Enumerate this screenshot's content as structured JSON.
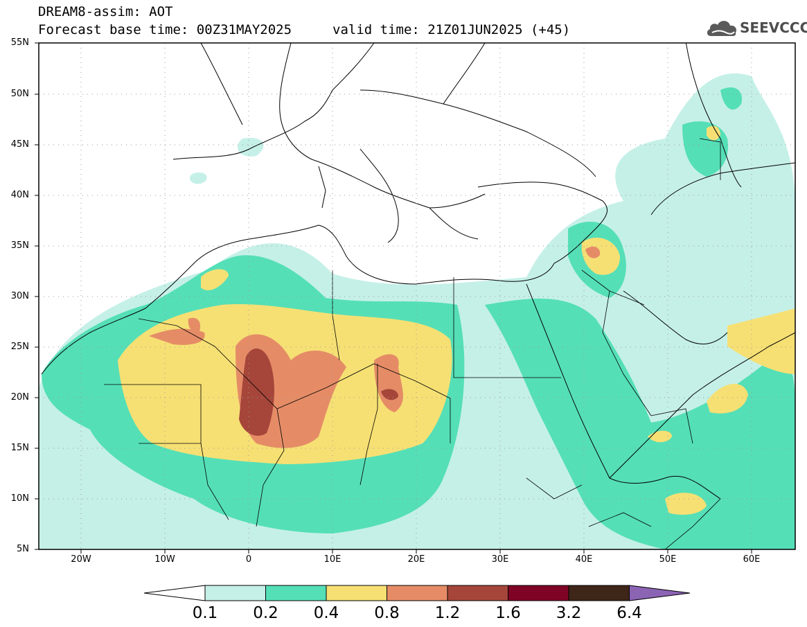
{
  "header": {
    "title_line1": "DREAM8-assim: AOT",
    "title_line2": "Forecast base time: 00Z31MAY2025",
    "valid_time": "valid time: 21Z01JUN2025 (+45)"
  },
  "logo": {
    "text": "SEEVCCC",
    "icon": "cloud-icon"
  },
  "map": {
    "lat_labels": [
      "55N",
      "50N",
      "45N",
      "40N",
      "35N",
      "30N",
      "25N",
      "20N",
      "15N",
      "10N",
      "5N"
    ],
    "lon_labels": [
      "20W",
      "10W",
      "0",
      "10E",
      "20E",
      "30E",
      "40E",
      "50E",
      "60E"
    ],
    "lon_range": [
      -25,
      65
    ],
    "lat_range": [
      5,
      55
    ],
    "grid": "dotted"
  },
  "legend": {
    "levels": [
      "0.1",
      "0.2",
      "0.4",
      "0.8",
      "1.2",
      "1.6",
      "3.2",
      "6.4"
    ],
    "colors": [
      "#ffffff",
      "#c5f0e8",
      "#55dfb7",
      "#f6e074",
      "#e58c67",
      "#a6463a",
      "#7f0325",
      "#3e2618",
      "#8c64b4"
    ]
  }
}
